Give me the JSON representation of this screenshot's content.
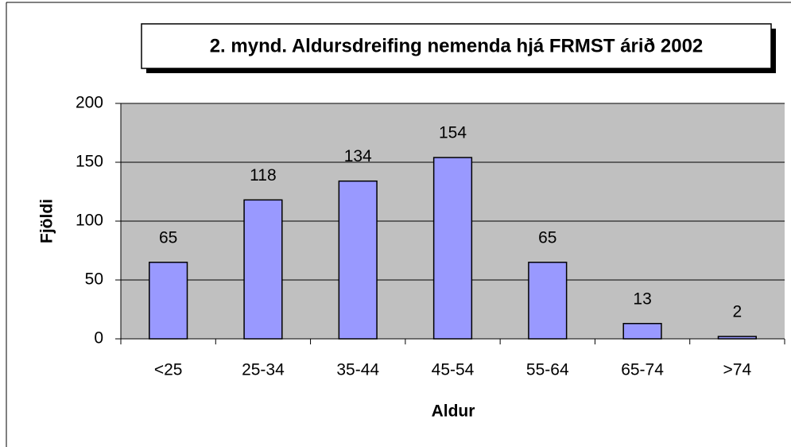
{
  "chart_data": {
    "type": "bar",
    "title": "2. mynd. Aldursdreifing nemenda hjá FRMST árið 2002",
    "x_label": "Aldur",
    "y_label": "Fjöldi",
    "categories": [
      "<25",
      "25-34",
      "35-44",
      "45-54",
      "55-64",
      "65-74",
      ">74"
    ],
    "values": [
      65,
      118,
      134,
      154,
      65,
      13,
      2
    ],
    "color": "#9999ff",
    "plot_background": "#c0c0c0",
    "ylim": [
      0,
      200
    ],
    "yticks": [
      0,
      50,
      100,
      150,
      200
    ],
    "grid": true
  }
}
